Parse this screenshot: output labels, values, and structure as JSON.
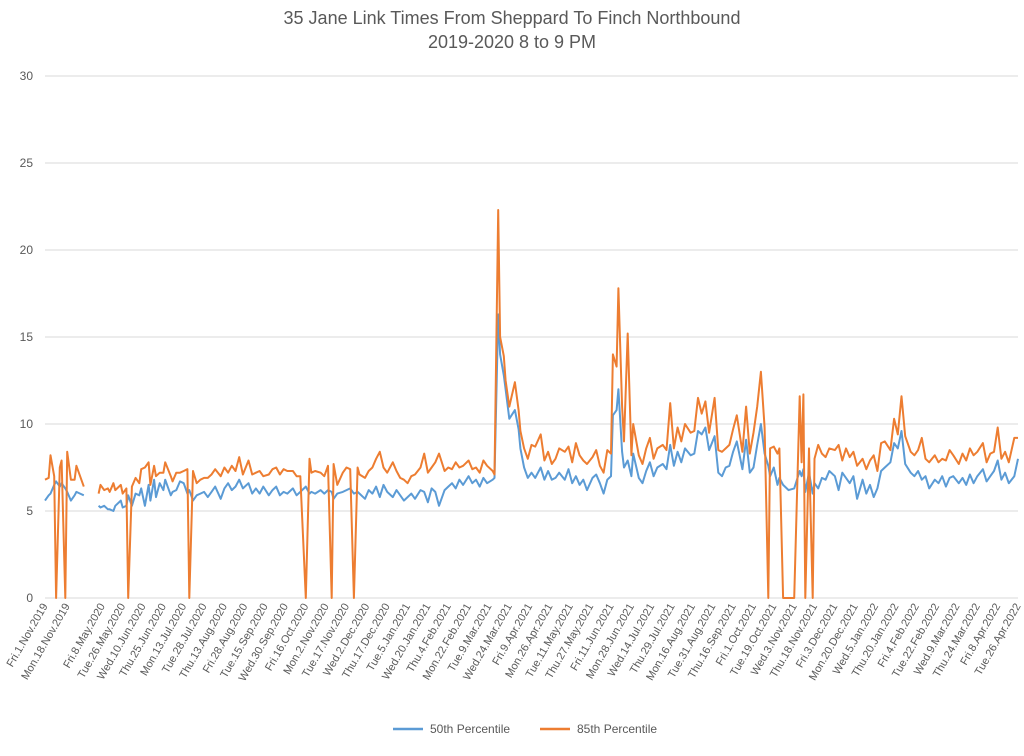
{
  "chart_data": {
    "type": "line",
    "title": [
      "35 Jane Link Times From Sheppard To Finch Northbound",
      "2019-2020 8 to 9 PM"
    ],
    "xlabel": "",
    "ylabel": "",
    "ylim": [
      0,
      30
    ],
    "yticks": [
      0,
      5,
      10,
      15,
      20,
      25,
      30
    ],
    "grid": true,
    "legend_position": "bottom",
    "colors": {
      "p50": "#5b9bd5",
      "p85": "#ed7d31",
      "grid": "#d9d9d9",
      "text": "#595959"
    },
    "x_range": [
      0,
      526
    ],
    "x_tick_labels": [
      {
        "x": 0,
        "label": "Fri.1.Nov.2019"
      },
      {
        "x": 12,
        "label": "Mon.18.Nov.2019"
      },
      {
        "x": 31,
        "label": "Fri.8.May.2020"
      },
      {
        "x": 42,
        "label": "Tue.26.May.2020"
      },
      {
        "x": 53,
        "label": "Wed.10.Jun.2020"
      },
      {
        "x": 64,
        "label": "Thu.25.Jun.2020"
      },
      {
        "x": 75,
        "label": "Mon.13.Jul.2020"
      },
      {
        "x": 86,
        "label": "Tue.28.Jul.2020"
      },
      {
        "x": 97,
        "label": "Thu.13.Aug.2020"
      },
      {
        "x": 108,
        "label": "Fri.28.Aug.2020"
      },
      {
        "x": 119,
        "label": "Tue.15.Sep.2020"
      },
      {
        "x": 130,
        "label": "Wed.30.Sep.2020"
      },
      {
        "x": 141,
        "label": "Fri.16.Oct.2020"
      },
      {
        "x": 152,
        "label": "Mon.2.Nov.2020"
      },
      {
        "x": 163,
        "label": "Tue.17.Nov.2020"
      },
      {
        "x": 174,
        "label": "Wed.2.Dec.2020"
      },
      {
        "x": 185,
        "label": "Thu.17.Dec.2020"
      },
      {
        "x": 196,
        "label": "Tue.5.Jan.2021"
      },
      {
        "x": 207,
        "label": "Wed.20.Jan.2021"
      },
      {
        "x": 218,
        "label": "Thu.4.Feb.2021"
      },
      {
        "x": 229,
        "label": "Mon.22.Feb.2021"
      },
      {
        "x": 240,
        "label": "Tue.9.Mar.2021"
      },
      {
        "x": 251,
        "label": "Wed.24.Mar.2021"
      },
      {
        "x": 262,
        "label": "Fri.9.Apr.2021"
      },
      {
        "x": 273,
        "label": "Mon.26.Apr.2021"
      },
      {
        "x": 284,
        "label": "Tue.11.May.2021"
      },
      {
        "x": 295,
        "label": "Thu.27.May.2021"
      },
      {
        "x": 306,
        "label": "Fri.11.Jun.2021"
      },
      {
        "x": 317,
        "label": "Mon.28.Jun.2021"
      },
      {
        "x": 328,
        "label": "Wed.14.Jul.2021"
      },
      {
        "x": 339,
        "label": "Thu.29.Jul.2021"
      },
      {
        "x": 350,
        "label": "Mon.16.Aug.2021"
      },
      {
        "x": 361,
        "label": "Tue.31.Aug.2021"
      },
      {
        "x": 372,
        "label": "Thu.16.Sep.2021"
      },
      {
        "x": 383,
        "label": "Fri.1.Oct.2021"
      },
      {
        "x": 394,
        "label": "Tue.19.Oct.2021"
      },
      {
        "x": 405,
        "label": "Wed.3.Nov.2021"
      },
      {
        "x": 416,
        "label": "Thu.18.Nov.2021"
      },
      {
        "x": 427,
        "label": "Fri.3.Dec.2021"
      },
      {
        "x": 438,
        "label": "Mon.20.Dec.2021"
      },
      {
        "x": 449,
        "label": "Wed.5.Jan.2022"
      },
      {
        "x": 460,
        "label": "Thu.20.Jan.2022"
      },
      {
        "x": 471,
        "label": "Fri.4.Feb.2022"
      },
      {
        "x": 482,
        "label": "Tue.22.Feb.2022"
      },
      {
        "x": 493,
        "label": "Wed.9.Mar.2022"
      },
      {
        "x": 504,
        "label": "Thu.24.Mar.2022"
      },
      {
        "x": 515,
        "label": "Fri.8.Apr.2022"
      },
      {
        "x": 526,
        "label": "Tue.26.Apr.2022"
      }
    ],
    "x": [
      0,
      2,
      3,
      5,
      6,
      8,
      9,
      11,
      12,
      14,
      16,
      17,
      19,
      21,
      22,
      29,
      30,
      32,
      34,
      35,
      37,
      38,
      41,
      42,
      44,
      45,
      47,
      49,
      51,
      52,
      54,
      56,
      57,
      59,
      60,
      62,
      64,
      65,
      68,
      69,
      71,
      73,
      75,
      77,
      78,
      80,
      82,
      84,
      86,
      88,
      90,
      92,
      95,
      97,
      99,
      101,
      103,
      105,
      107,
      110,
      112,
      114,
      116,
      118,
      121,
      123,
      125,
      127,
      129,
      131,
      134,
      136,
      138,
      141,
      143,
      144,
      146,
      149,
      151,
      153,
      155,
      156,
      158,
      161,
      163,
      165,
      167,
      169,
      170,
      173,
      175,
      177,
      179,
      181,
      183,
      185,
      188,
      190,
      192,
      194,
      196,
      198,
      200,
      203,
      205,
      207,
      209,
      211,
      213,
      216,
      218,
      220,
      222,
      224,
      226,
      229,
      231,
      233,
      235,
      237,
      239,
      242,
      243,
      245,
      246,
      248,
      249,
      251,
      254,
      256,
      257,
      259,
      261,
      263,
      265,
      268,
      270,
      272,
      274,
      276,
      278,
      281,
      283,
      285,
      287,
      289,
      291,
      293,
      296,
      298,
      300,
      302,
      304,
      306,
      307,
      309,
      310,
      312,
      313,
      315,
      317,
      318,
      321,
      323,
      325,
      327,
      329,
      331,
      334,
      336,
      338,
      340,
      342,
      344,
      346,
      349,
      351,
      353,
      355,
      357,
      359,
      362,
      364,
      366,
      368,
      370,
      372,
      374,
      377,
      379,
      381,
      383,
      385,
      387,
      389,
      391,
      392,
      394,
      396,
      397,
      399,
      402,
      405,
      408,
      409,
      410,
      411,
      413,
      415,
      416,
      418,
      420,
      422,
      424,
      427,
      429,
      431,
      433,
      435,
      437,
      439,
      442,
      444,
      446,
      448,
      450,
      452,
      454,
      457,
      459,
      461,
      463,
      465,
      468,
      470,
      472,
      474,
      476,
      478,
      481,
      483,
      485,
      487,
      489,
      491,
      494,
      496,
      498,
      500,
      502,
      504,
      507,
      509,
      511,
      513,
      515,
      517,
      519,
      521,
      524,
      526
    ],
    "series": [
      {
        "name": "50th Percentile",
        "key": "p50",
        "values": [
          5.6,
          5.9,
          6.0,
          6.5,
          6.7,
          6.4,
          6.6,
          6.3,
          6.1,
          5.6,
          5.9,
          6.1,
          6.0,
          5.9,
          null,
          5.3,
          5.2,
          5.3,
          5.1,
          5.1,
          5.0,
          5.3,
          5.6,
          5.2,
          5.3,
          5.9,
          5.3,
          6.0,
          5.9,
          6.3,
          5.3,
          6.5,
          5.6,
          6.8,
          5.8,
          6.6,
          6.2,
          6.8,
          5.9,
          6.1,
          6.2,
          6.7,
          6.6,
          6.0,
          6.2,
          5.6,
          5.9,
          6.0,
          6.1,
          5.8,
          6.1,
          6.4,
          5.7,
          6.3,
          6.6,
          6.2,
          6.4,
          6.8,
          6.3,
          6.6,
          6.0,
          6.3,
          6.0,
          6.4,
          5.9,
          6.2,
          6.4,
          5.9,
          6.1,
          6.0,
          6.3,
          5.9,
          6.1,
          6.4,
          6.0,
          6.1,
          6.0,
          6.2,
          6.0,
          6.2,
          6.1,
          5.7,
          6.0,
          6.1,
          6.2,
          6.3,
          6.0,
          6.1,
          6.0,
          5.7,
          6.2,
          6.0,
          6.4,
          5.8,
          6.5,
          6.1,
          5.8,
          6.2,
          5.9,
          5.6,
          5.8,
          6.0,
          5.7,
          6.2,
          6.1,
          5.5,
          6.3,
          6.1,
          5.3,
          6.2,
          6.4,
          6.6,
          6.3,
          6.8,
          6.5,
          7.0,
          6.6,
          6.8,
          6.4,
          6.9,
          6.6,
          6.8,
          6.9,
          16.3,
          14.0,
          12.8,
          12.0,
          10.3,
          10.8,
          9.7,
          8.6,
          7.5,
          6.9,
          7.2,
          6.9,
          7.5,
          6.8,
          7.3,
          6.8,
          6.9,
          7.2,
          6.8,
          7.4,
          6.6,
          7.0,
          6.5,
          6.8,
          6.2,
          6.9,
          7.1,
          6.6,
          6.0,
          6.8,
          7.0,
          10.5,
          10.8,
          12.0,
          8.4,
          7.5,
          7.9,
          7.0,
          8.3,
          6.9,
          6.6,
          7.3,
          7.8,
          7.0,
          7.5,
          7.7,
          7.4,
          8.8,
          7.6,
          8.4,
          7.8,
          8.6,
          8.2,
          8.3,
          9.6,
          9.4,
          9.8,
          8.5,
          9.3,
          7.2,
          7.0,
          7.5,
          7.6,
          8.4,
          9.0,
          7.4,
          9.1,
          7.2,
          7.5,
          8.8,
          10.0,
          8.3,
          7.6,
          7.0,
          7.5,
          6.5,
          6.9,
          6.5,
          6.2,
          6.3,
          7.3,
          7.0,
          7.4,
          6.1,
          7.2,
          6.0,
          6.6,
          6.3,
          6.9,
          6.8,
          7.3,
          7.0,
          6.2,
          7.2,
          6.9,
          6.6,
          7.0,
          5.7,
          6.8,
          6.0,
          6.5,
          5.8,
          6.3,
          7.3,
          7.5,
          7.8,
          8.9,
          8.6,
          9.6,
          7.7,
          7.2,
          7.0,
          7.3,
          6.8,
          7.0,
          6.3,
          6.8,
          6.6,
          7.0,
          6.4,
          6.9,
          7.0,
          6.6,
          6.9,
          6.5,
          7.1,
          6.6,
          7.0,
          7.4,
          6.7,
          7.0,
          7.3,
          7.9,
          6.8,
          7.2,
          6.6,
          7.0,
          8.0
        ]
      },
      {
        "name": "85th Percentile",
        "key": "p85",
        "values": [
          6.8,
          6.9,
          8.2,
          7.0,
          0,
          7.5,
          7.9,
          0,
          8.4,
          6.8,
          6.8,
          7.6,
          7.0,
          6.4,
          null,
          6.0,
          6.5,
          6.2,
          6.3,
          6.1,
          6.6,
          6.2,
          6.5,
          6.0,
          6.3,
          0,
          6.4,
          6.9,
          6.6,
          7.4,
          7.5,
          7.8,
          6.5,
          7.6,
          7.0,
          7.2,
          7.2,
          7.8,
          7.0,
          6.7,
          7.2,
          7.2,
          7.3,
          7.4,
          0,
          7.3,
          6.6,
          6.8,
          6.9,
          6.9,
          7.1,
          7.4,
          7.0,
          7.5,
          7.2,
          7.6,
          7.3,
          8.1,
          7.1,
          7.9,
          7.1,
          7.2,
          7.3,
          7.0,
          7.1,
          7.4,
          7.5,
          7.1,
          7.4,
          7.3,
          7.3,
          7.0,
          7.0,
          0,
          8.0,
          7.2,
          7.3,
          7.2,
          7.0,
          7.6,
          0,
          7.7,
          6.5,
          7.2,
          7.5,
          7.4,
          0,
          7.5,
          7.1,
          6.9,
          7.3,
          7.5,
          8.0,
          8.4,
          7.5,
          7.2,
          7.8,
          7.3,
          6.9,
          6.8,
          6.6,
          7.0,
          7.1,
          7.5,
          8.3,
          7.2,
          7.5,
          7.8,
          8.3,
          7.3,
          7.5,
          7.4,
          7.8,
          7.5,
          7.6,
          7.9,
          7.4,
          7.5,
          7.2,
          7.9,
          7.6,
          7.3,
          7.1,
          22.3,
          15.0,
          13.9,
          12.5,
          11.0,
          12.4,
          10.8,
          9.6,
          8.6,
          8.0,
          8.8,
          8.7,
          9.4,
          7.9,
          8.4,
          7.7,
          8.0,
          8.6,
          8.4,
          8.7,
          7.8,
          8.9,
          8.2,
          7.9,
          7.7,
          8.1,
          8.5,
          7.6,
          7.2,
          8.5,
          8.3,
          14.0,
          13.3,
          17.8,
          11.0,
          9.0,
          15.2,
          8.2,
          10.0,
          8.2,
          7.7,
          8.6,
          9.2,
          8.0,
          8.6,
          8.8,
          8.5,
          11.2,
          8.6,
          9.8,
          9.0,
          10.0,
          9.5,
          9.6,
          11.5,
          10.6,
          11.3,
          9.5,
          11.5,
          8.5,
          8.4,
          8.6,
          8.8,
          9.7,
          10.5,
          8.4,
          11.0,
          8.3,
          9.5,
          11.0,
          13.0,
          9.8,
          0,
          8.6,
          8.7,
          8.3,
          8.6,
          0,
          0,
          0,
          11.6,
          7.8,
          11.7,
          0,
          8.6,
          0,
          8.0,
          8.8,
          8.3,
          8.1,
          8.6,
          8.5,
          8.8,
          7.9,
          8.6,
          8.1,
          8.4,
          7.6,
          8.0,
          7.4,
          7.9,
          8.2,
          7.3,
          8.9,
          9.0,
          8.5,
          10.3,
          9.4,
          11.6,
          9.3,
          8.4,
          8.2,
          8.5,
          9.2,
          8.0,
          7.8,
          8.2,
          7.8,
          8.0,
          7.9,
          8.5,
          8.2,
          7.7,
          8.3,
          7.9,
          8.6,
          8.2,
          8.4,
          8.9,
          7.8,
          8.3,
          8.4,
          9.8,
          8.0,
          8.4,
          7.8,
          9.2,
          9.2
        ]
      }
    ]
  }
}
